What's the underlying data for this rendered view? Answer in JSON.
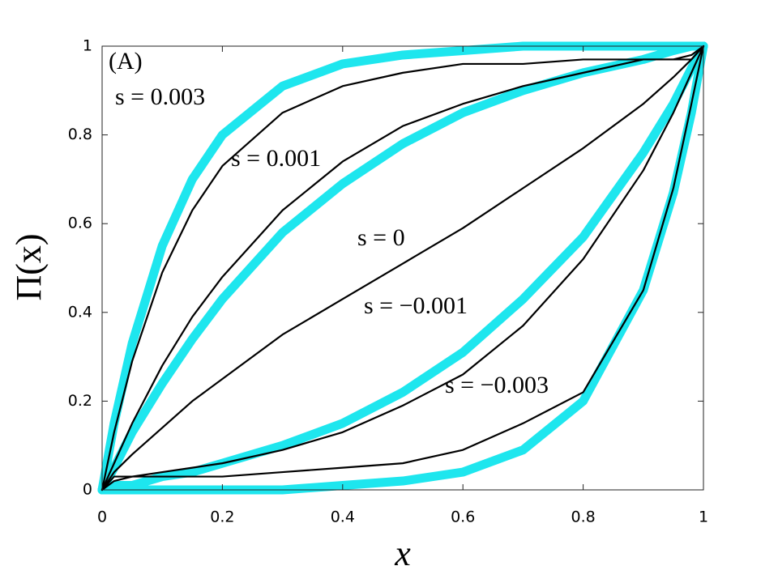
{
  "chart_data": {
    "type": "line",
    "xlabel": "x",
    "ylabel": "Π(x)",
    "x": [
      0,
      0.02,
      0.05,
      0.1,
      0.15,
      0.2,
      0.3,
      0.4,
      0.5,
      0.6,
      0.7,
      0.8,
      0.9,
      0.95,
      0.98,
      1
    ],
    "series": [
      {
        "color": "#1ee6ee",
        "width": 11,
        "values": [
          0,
          0.15,
          0.33,
          0.55,
          0.7,
          0.8,
          0.91,
          0.96,
          0.98,
          0.99,
          1,
          1,
          1,
          1,
          1,
          1
        ]
      },
      {
        "color": "#1ee6ee",
        "width": 11,
        "values": [
          0,
          0.05,
          0.13,
          0.24,
          0.34,
          0.43,
          0.58,
          0.69,
          0.78,
          0.85,
          0.9,
          0.94,
          0.97,
          0.99,
          1,
          1
        ]
      },
      {
        "color": "#1ee6ee",
        "width": 11,
        "values": [
          0,
          0.01,
          0.01,
          0.03,
          0.04,
          0.06,
          0.1,
          0.15,
          0.22,
          0.31,
          0.43,
          0.57,
          0.76,
          0.87,
          0.95,
          1
        ]
      },
      {
        "color": "#1ee6ee",
        "width": 11,
        "values": [
          0,
          0,
          0,
          0,
          0,
          0,
          0,
          0.01,
          0.02,
          0.04,
          0.09,
          0.2,
          0.45,
          0.67,
          0.85,
          1
        ]
      },
      {
        "color": "#000000",
        "width": 2.2,
        "values": [
          0,
          0.13,
          0.29,
          0.49,
          0.63,
          0.73,
          0.85,
          0.91,
          0.94,
          0.96,
          0.96,
          0.97,
          0.97,
          0.97,
          0.97,
          1
        ]
      },
      {
        "color": "#000000",
        "width": 2.2,
        "values": [
          0,
          0.06,
          0.15,
          0.28,
          0.39,
          0.48,
          0.63,
          0.74,
          0.82,
          0.87,
          0.91,
          0.94,
          0.97,
          0.97,
          0.98,
          1
        ]
      },
      {
        "color": "#000000",
        "width": 2.2,
        "values": [
          0,
          0.04,
          0.08,
          0.14,
          0.2,
          0.25,
          0.35,
          0.43,
          0.51,
          0.59,
          0.68,
          0.77,
          0.87,
          0.93,
          0.97,
          1
        ]
      },
      {
        "color": "#000000",
        "width": 2.2,
        "values": [
          0,
          0.02,
          0.03,
          0.04,
          0.05,
          0.06,
          0.09,
          0.13,
          0.19,
          0.26,
          0.37,
          0.52,
          0.72,
          0.85,
          0.94,
          1
        ]
      },
      {
        "color": "#000000",
        "width": 2.2,
        "values": [
          0,
          0.03,
          0.03,
          0.03,
          0.03,
          0.03,
          0.04,
          0.05,
          0.06,
          0.09,
          0.15,
          0.22,
          0.45,
          0.68,
          0.87,
          1
        ]
      }
    ],
    "annotations": [
      "(A)",
      "s = 0.003",
      "s = 0.001",
      "s = 0",
      "s = −0.001",
      "s = −0.003"
    ],
    "xlim": [
      0,
      1
    ],
    "ylim": [
      0,
      1
    ],
    "xticks": [
      0,
      0.2,
      0.4,
      0.6,
      0.8,
      1
    ],
    "yticks": [
      0,
      0.2,
      0.4,
      0.6,
      0.8,
      1
    ]
  }
}
